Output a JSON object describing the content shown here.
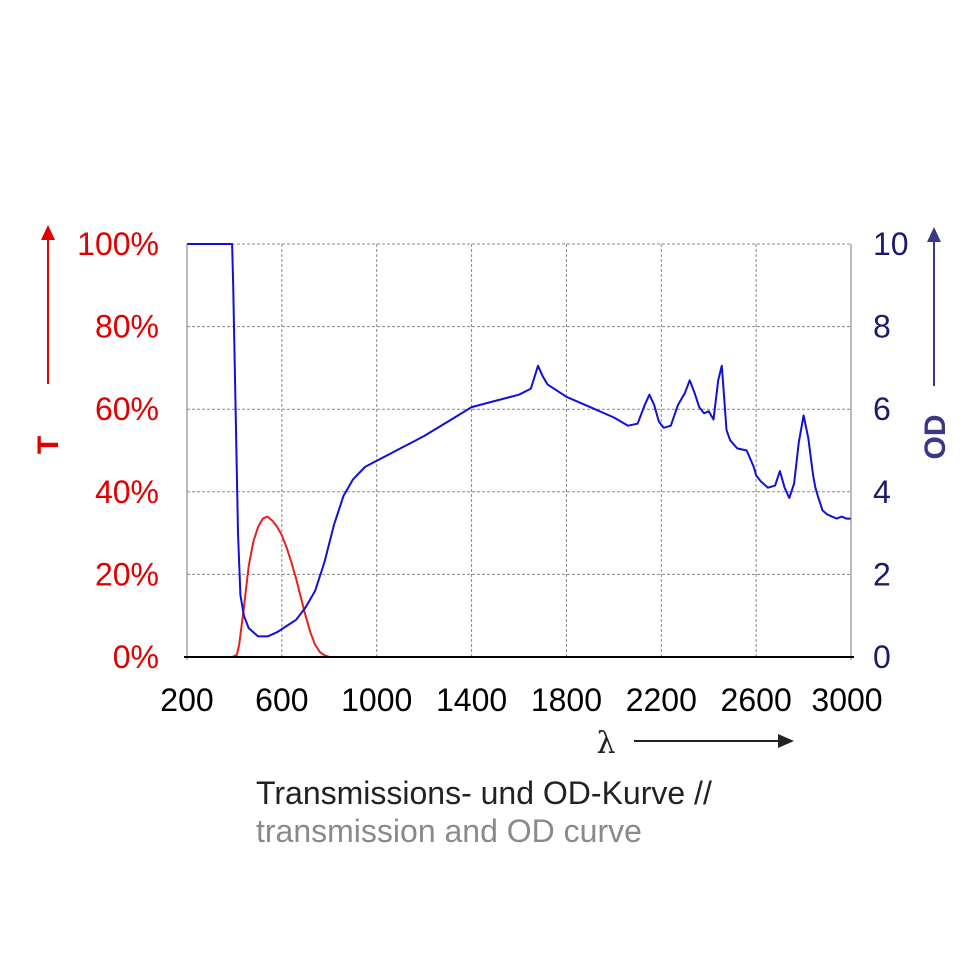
{
  "chart_data": {
    "type": "line",
    "xlabel": "λ",
    "ylabel_left": "T",
    "ylabel_right": "OD",
    "xlim": [
      200,
      3000
    ],
    "ylim_left": [
      0,
      100
    ],
    "ylim_right": [
      0,
      10
    ],
    "x_ticks": [
      "200",
      "600",
      "1000",
      "1400",
      "1800",
      "2200",
      "2600",
      "3000"
    ],
    "y_left_ticks": [
      "0%",
      "20%",
      "40%",
      "60%",
      "80%",
      "100%"
    ],
    "y_right_ticks": [
      "0",
      "2",
      "4",
      "6",
      "8",
      "10"
    ],
    "grid": true,
    "colors": {
      "T": "#e8201c",
      "OD": "#1010d8",
      "grid": "#888888",
      "axis": "#000000"
    },
    "series": [
      {
        "name": "T",
        "axis": "left",
        "color": "#e8201c",
        "x": [
          200,
          390,
          410,
          420,
          440,
          460,
          480,
          500,
          520,
          540,
          560,
          580,
          600,
          620,
          640,
          660,
          680,
          700,
          720,
          740,
          760,
          780,
          800,
          840,
          3000
        ],
        "y": [
          0,
          0,
          0.5,
          3,
          12,
          22,
          28,
          31.5,
          33.5,
          34,
          33,
          31.5,
          29.5,
          26.5,
          23,
          19,
          14.5,
          10,
          6,
          3,
          1.2,
          0.4,
          0,
          0,
          0
        ]
      },
      {
        "name": "OD",
        "axis": "right",
        "color": "#1010d8",
        "x": [
          200,
          390,
          395,
          405,
          415,
          425,
          440,
          460,
          500,
          540,
          580,
          620,
          660,
          700,
          740,
          780,
          820,
          860,
          900,
          950,
          1000,
          1050,
          1100,
          1150,
          1200,
          1300,
          1400,
          1500,
          1600,
          1650,
          1680,
          1700,
          1720,
          1760,
          1800,
          1900,
          2000,
          2060,
          2100,
          2130,
          2150,
          2170,
          2190,
          2210,
          2240,
          2270,
          2300,
          2320,
          2340,
          2360,
          2380,
          2400,
          2420,
          2440,
          2455,
          2465,
          2475,
          2490,
          2520,
          2560,
          2590,
          2600,
          2620,
          2650,
          2680,
          2700,
          2720,
          2740,
          2760,
          2780,
          2800,
          2820,
          2840,
          2850,
          2860,
          2880,
          2900,
          2920,
          2940,
          2960,
          2980,
          3000
        ],
        "y": [
          10,
          10,
          9,
          6,
          3,
          1.5,
          1,
          0.7,
          0.5,
          0.5,
          0.6,
          0.75,
          0.9,
          1.2,
          1.6,
          2.3,
          3.2,
          3.9,
          4.3,
          4.6,
          4.75,
          4.9,
          5.05,
          5.2,
          5.35,
          5.7,
          6.05,
          6.2,
          6.35,
          6.5,
          7.05,
          6.8,
          6.6,
          6.45,
          6.3,
          6.05,
          5.8,
          5.6,
          5.65,
          6.1,
          6.35,
          6.1,
          5.7,
          5.55,
          5.6,
          6.1,
          6.4,
          6.7,
          6.4,
          6.05,
          5.9,
          5.95,
          5.75,
          6.7,
          7.05,
          6.3,
          5.5,
          5.25,
          5.05,
          5.0,
          4.6,
          4.4,
          4.25,
          4.1,
          4.15,
          4.5,
          4.1,
          3.85,
          4.2,
          5.2,
          5.85,
          5.3,
          4.4,
          4.1,
          3.9,
          3.55,
          3.45,
          3.4,
          3.35,
          3.4,
          3.35,
          3.35
        ]
      }
    ]
  },
  "caption": {
    "line1": "Transmissions- und OD-Kurve //",
    "line2": "transmission and OD curve"
  }
}
